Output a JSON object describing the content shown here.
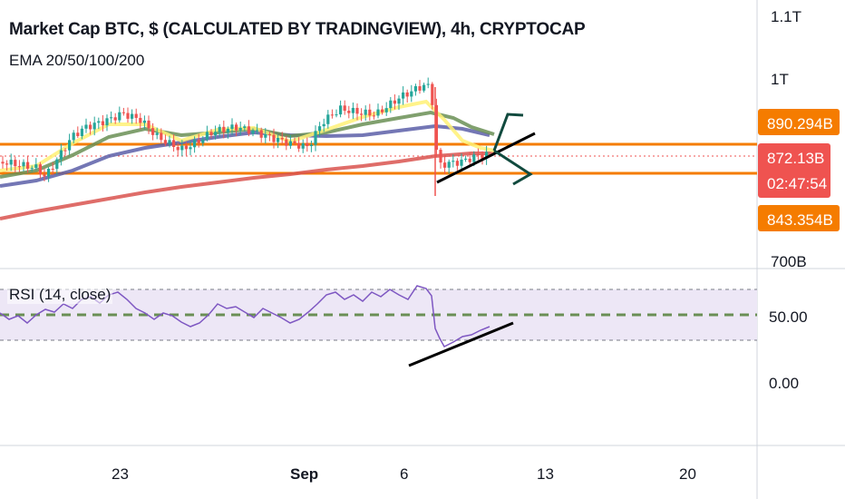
{
  "header": {
    "title": "Market Cap BTC, $ (CALCULATED BY TRADINGVIEW), 4h, CRYPTOCAP",
    "indicator": "EMA 20/50/100/200"
  },
  "rsi": {
    "label": "RSI (14, close)",
    "axis_labels": [
      "50.00",
      "0.00"
    ]
  },
  "price_axis": {
    "labels": [
      "1.1T",
      "1T",
      "700B"
    ]
  },
  "price_tags": [
    {
      "name": "upper-level",
      "text": "890.294B",
      "color": "#f57c00"
    },
    {
      "name": "last-price",
      "text": "872.13B",
      "color": "#ef5350"
    },
    {
      "name": "countdown",
      "text": "02:47:54",
      "color": "#ef5350"
    },
    {
      "name": "lower-level",
      "text": "843.354B",
      "color": "#f57c00"
    }
  ],
  "time_axis": {
    "labels": [
      "23",
      "Sep",
      "6",
      "13",
      "20"
    ]
  },
  "colors": {
    "up": "#26a69a",
    "down": "#ef5350",
    "ema20": "#fff176",
    "ema50": "#6a8f55",
    "ema100": "#5c5fa8",
    "ema200": "#d9534f",
    "level": "#f57c00",
    "rsi": "#7e57c2",
    "rsi_band": "#ede7f6"
  },
  "chart_data": {
    "type": "candlestick",
    "title": "Market Cap BTC, $ (CALCULATED BY TRADINGVIEW), 4h, CRYPTOCAP",
    "timeframe": "4h",
    "x_labels": [
      "23",
      "Sep",
      "6",
      "13",
      "20"
    ],
    "y_labels": [
      "1.1T",
      "1T",
      "700B"
    ],
    "horizontal_levels": [
      890.294,
      843.354
    ],
    "last_price": 872.13,
    "indicators": [
      "EMA 20",
      "EMA 50",
      "EMA 100",
      "EMA 200"
    ],
    "rsi": {
      "period": 14,
      "source": "close",
      "bands": [
        70,
        50,
        30
      ],
      "axis_labels": [
        "50.00",
        "0.00"
      ]
    }
  }
}
